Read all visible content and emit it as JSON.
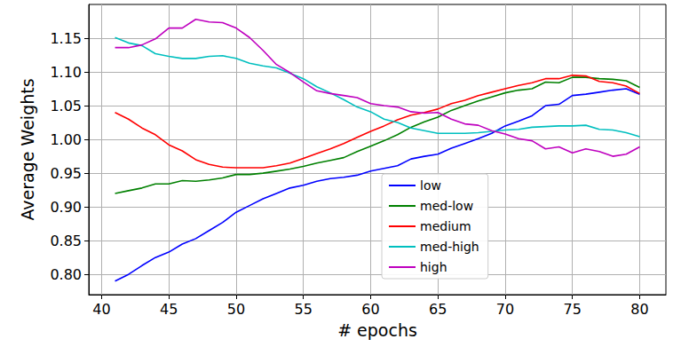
{
  "chart_data": {
    "type": "line",
    "x_label": "# epochs",
    "y_label": "Average Weights",
    "x": [
      41,
      42,
      43,
      44,
      45,
      46,
      47,
      48,
      49,
      50,
      51,
      52,
      53,
      54,
      55,
      56,
      57,
      58,
      59,
      60,
      61,
      62,
      63,
      64,
      65,
      66,
      67,
      68,
      69,
      70,
      71,
      72,
      73,
      74,
      75,
      76,
      77,
      78,
      79,
      80
    ],
    "series": [
      {
        "name": "low",
        "color": "#0000ff",
        "values": [
          0.79,
          0.8,
          0.813,
          0.825,
          0.833,
          0.845,
          0.853,
          0.865,
          0.877,
          0.892,
          0.902,
          0.912,
          0.92,
          0.928,
          0.932,
          0.938,
          0.942,
          0.944,
          0.947,
          0.953,
          0.957,
          0.961,
          0.971,
          0.975,
          0.978,
          0.987,
          0.994,
          1.001,
          1.009,
          1.02,
          1.027,
          1.035,
          1.05,
          1.052,
          1.065,
          1.067,
          1.07,
          1.073,
          1.075,
          1.067
        ]
      },
      {
        "name": "med-low",
        "color": "#008000",
        "values": [
          0.92,
          0.924,
          0.928,
          0.934,
          0.934,
          0.939,
          0.938,
          0.94,
          0.943,
          0.948,
          0.948,
          0.95,
          0.953,
          0.956,
          0.96,
          0.965,
          0.969,
          0.973,
          0.982,
          0.99,
          0.998,
          1.007,
          1.018,
          1.026,
          1.033,
          1.043,
          1.05,
          1.057,
          1.063,
          1.069,
          1.073,
          1.075,
          1.085,
          1.084,
          1.092,
          1.092,
          1.09,
          1.089,
          1.087,
          1.077
        ]
      },
      {
        "name": "medium",
        "color": "#ff0000",
        "values": [
          1.04,
          1.03,
          1.017,
          1.007,
          0.992,
          0.983,
          0.97,
          0.963,
          0.959,
          0.958,
          0.958,
          0.958,
          0.961,
          0.965,
          0.972,
          0.979,
          0.986,
          0.994,
          1.003,
          1.012,
          1.02,
          1.029,
          1.036,
          1.04,
          1.045,
          1.053,
          1.058,
          1.065,
          1.07,
          1.075,
          1.08,
          1.084,
          1.09,
          1.09,
          1.095,
          1.094,
          1.086,
          1.084,
          1.079,
          1.068
        ]
      },
      {
        "name": "med-high",
        "color": "#00bfbf",
        "values": [
          1.151,
          1.143,
          1.139,
          1.127,
          1.123,
          1.12,
          1.12,
          1.123,
          1.124,
          1.12,
          1.113,
          1.109,
          1.106,
          1.098,
          1.09,
          1.078,
          1.069,
          1.059,
          1.048,
          1.041,
          1.03,
          1.025,
          1.017,
          1.013,
          1.009,
          1.009,
          1.009,
          1.01,
          1.012,
          1.014,
          1.015,
          1.018,
          1.019,
          1.02,
          1.02,
          1.021,
          1.015,
          1.014,
          1.01,
          1.004
        ]
      },
      {
        "name": "high",
        "color": "#bf00bf",
        "values": [
          1.136,
          1.136,
          1.14,
          1.149,
          1.165,
          1.165,
          1.178,
          1.174,
          1.173,
          1.165,
          1.151,
          1.132,
          1.111,
          1.099,
          1.085,
          1.072,
          1.068,
          1.065,
          1.062,
          1.053,
          1.05,
          1.048,
          1.041,
          1.039,
          1.04,
          1.03,
          1.023,
          1.021,
          1.013,
          1.008,
          1.001,
          0.998,
          0.986,
          0.989,
          0.98,
          0.986,
          0.982,
          0.975,
          0.978,
          0.989
        ]
      }
    ],
    "xlim": [
      39.05,
      81.95
    ],
    "xticks": [
      40,
      45,
      50,
      55,
      60,
      65,
      70,
      75,
      80
    ],
    "ylim": [
      0.77,
      1.2
    ],
    "yticks": [
      {
        "value": 0.8,
        "label": "0.80"
      },
      {
        "value": 0.85,
        "label": "0.85"
      },
      {
        "value": 0.9,
        "label": "0.90"
      },
      {
        "value": 0.95,
        "label": "0.95"
      },
      {
        "value": 1.0,
        "label": "1.00"
      },
      {
        "value": 1.05,
        "label": "1.05"
      },
      {
        "value": 1.1,
        "label": "1.10"
      },
      {
        "value": 1.15,
        "label": "1.15"
      }
    ],
    "grid": true,
    "legend": "lower center"
  }
}
